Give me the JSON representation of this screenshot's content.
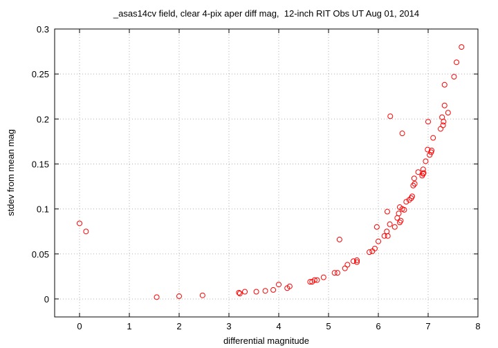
{
  "chart_data": {
    "type": "scatter",
    "title": "_asas14cv field, clear 4-pix aper diff mag,  12-inch RIT Obs UT Aug 01, 2014",
    "x_label": "differential magnitude",
    "y_label": "stdev from mean mag",
    "xlim": [
      -0.5,
      8
    ],
    "ylim": [
      -0.02,
      0.3
    ],
    "xticks": [
      0,
      1,
      2,
      3,
      4,
      5,
      6,
      7,
      8
    ],
    "yticks": [
      0,
      0.05,
      0.1,
      0.15,
      0.2,
      0.25,
      0.3
    ],
    "grid": true,
    "series": [
      {
        "color": "#ff0000",
        "x": [
          0.0,
          0.13,
          1.55,
          2.0,
          2.47,
          3.2,
          3.22,
          3.32,
          3.55,
          3.73,
          3.89,
          4.0,
          4.17,
          4.22,
          4.63,
          4.67,
          4.72,
          4.77,
          4.9,
          5.12,
          5.18,
          5.22,
          5.33,
          5.38,
          5.5,
          5.57,
          5.57,
          5.82,
          5.88,
          5.93,
          6.0,
          5.97,
          6.12,
          6.17,
          6.19,
          6.23,
          6.18,
          6.24,
          6.33,
          6.38,
          6.41,
          6.43,
          6.45,
          6.48,
          6.43,
          6.48,
          6.52,
          6.56,
          6.62,
          6.66,
          6.68,
          6.7,
          6.73,
          6.72,
          6.8,
          6.88,
          6.9,
          6.9,
          6.91,
          6.95,
          6.99,
          7.03,
          7.06,
          7.07,
          7.0,
          7.1,
          7.25,
          7.3,
          7.28,
          7.31,
          7.33,
          7.33,
          7.4,
          7.52,
          7.57,
          7.67
        ],
        "values": [
          0.084,
          0.075,
          0.002,
          0.003,
          0.004,
          0.007,
          0.006,
          0.008,
          0.008,
          0.009,
          0.01,
          0.016,
          0.012,
          0.014,
          0.019,
          0.019,
          0.021,
          0.021,
          0.024,
          0.029,
          0.029,
          0.066,
          0.034,
          0.038,
          0.042,
          0.041,
          0.043,
          0.052,
          0.053,
          0.056,
          0.064,
          0.08,
          0.07,
          0.075,
          0.07,
          0.083,
          0.097,
          0.203,
          0.08,
          0.09,
          0.095,
          0.102,
          0.087,
          0.1,
          0.085,
          0.184,
          0.099,
          0.108,
          0.11,
          0.112,
          0.114,
          0.126,
          0.128,
          0.134,
          0.141,
          0.137,
          0.139,
          0.144,
          0.14,
          0.153,
          0.166,
          0.16,
          0.163,
          0.165,
          0.197,
          0.179,
          0.189,
          0.193,
          0.202,
          0.197,
          0.215,
          0.238,
          0.207,
          0.247,
          0.263,
          0.28
        ]
      }
    ]
  }
}
